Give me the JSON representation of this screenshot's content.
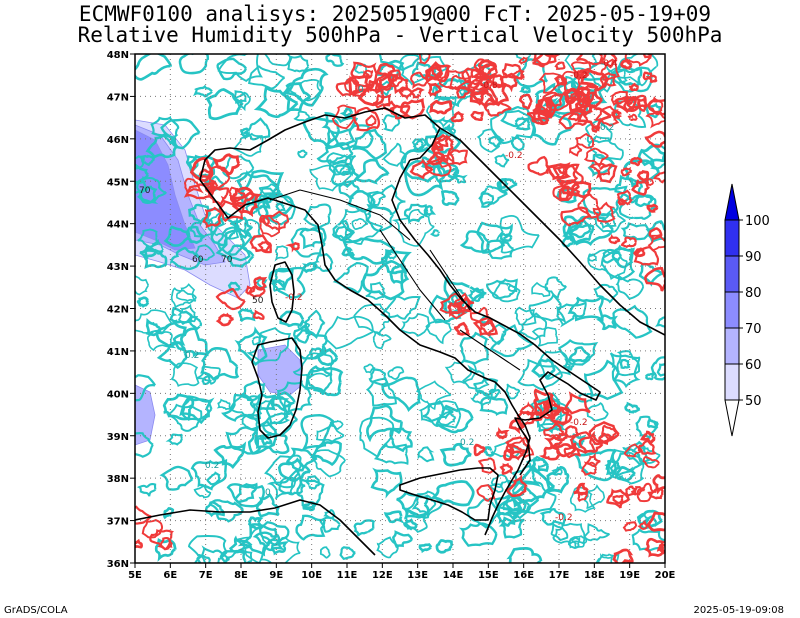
{
  "header": {
    "line1": "ECMWF0100 analisys: 20250519@00 FcT: 2025-05-19+09",
    "line2": "Relative Humidity 500hPa - Vertical Velocity 500hPa"
  },
  "footer": {
    "left": "GrADS/COLA",
    "right": "2025-05-19-09:08"
  },
  "map": {
    "lon_ticks": [
      "5E",
      "6E",
      "7E",
      "8E",
      "9E",
      "10E",
      "11E",
      "12E",
      "13E",
      "14E",
      "15E",
      "16E",
      "17E",
      "18E",
      "19E",
      "20E"
    ],
    "lat_ticks": [
      "48N",
      "47N",
      "46N",
      "45N",
      "44N",
      "43N",
      "42N",
      "41N",
      "40N",
      "39N",
      "38N",
      "37N",
      "36N"
    ],
    "lon_range": [
      5,
      20
    ],
    "lat_range": [
      36,
      48
    ],
    "gridlines": "dotted",
    "colors": {
      "vv_positive": "#26c4c4",
      "vv_negative": "#f03a3a",
      "coast": "#000000",
      "rh_50": "#dcdcff",
      "rh_60": "#b4b4ff",
      "rh_70": "#8c8cff"
    },
    "contour_labels": [
      "-0.2",
      "0.2",
      "0",
      "-0.8",
      "-0.4",
      "0.2",
      "-0.2",
      "0.2",
      "-0.2",
      "0.2",
      "0",
      "-0.2"
    ],
    "rh_labels": [
      "70",
      "60",
      "70",
      "50",
      "-0.2"
    ]
  },
  "colorbar": {
    "labels": [
      "100",
      "90",
      "80",
      "70",
      "60",
      "50"
    ],
    "colors": [
      "#0000e0",
      "#3030f0",
      "#5a5af5",
      "#8c8cff",
      "#b4b4ff",
      "#dcdcff"
    ]
  }
}
